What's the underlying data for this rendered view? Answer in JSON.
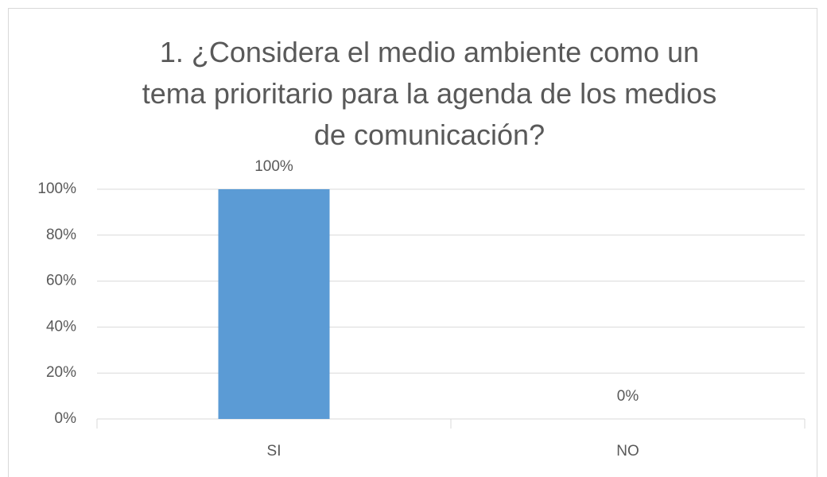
{
  "chart_data": {
    "type": "bar",
    "title": "1. ¿Considera el medio ambiente como un tema prioritario para la agenda de los medios de comunicación?",
    "categories": [
      "SI",
      "NO"
    ],
    "values": [
      100,
      0
    ],
    "value_labels": [
      "100%",
      "0%"
    ],
    "color": "#5b9bd5",
    "ylim": [
      0,
      100
    ],
    "yticks": [
      {
        "value": 0,
        "label": "0%"
      },
      {
        "value": 20,
        "label": "20%"
      },
      {
        "value": 40,
        "label": "40%"
      },
      {
        "value": 60,
        "label": "60%"
      },
      {
        "value": 80,
        "label": "80%"
      },
      {
        "value": 100,
        "label": "100%"
      }
    ],
    "grid": true
  }
}
